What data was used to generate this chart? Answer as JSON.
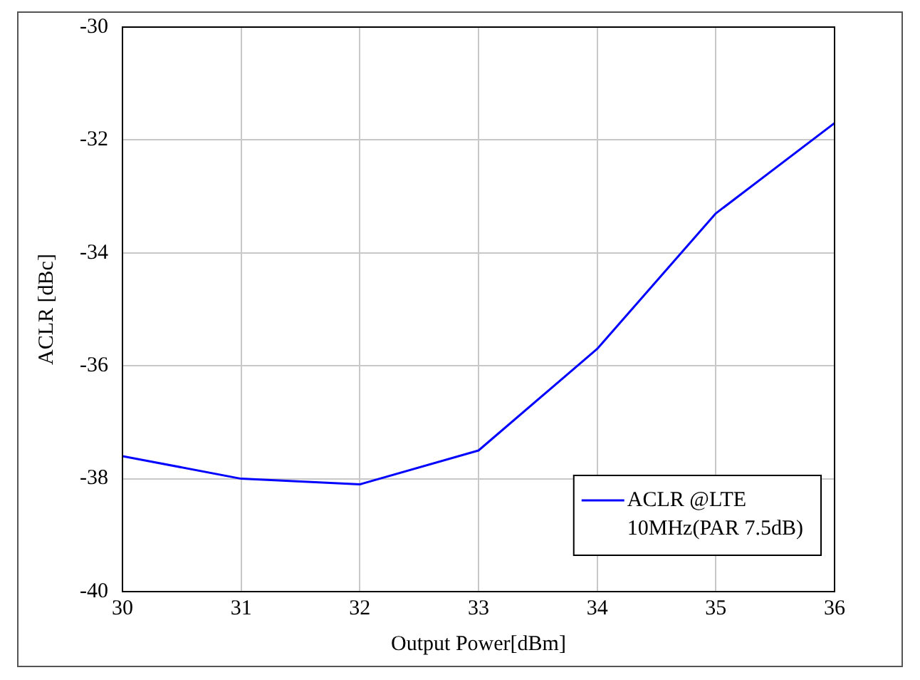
{
  "chart_data": {
    "type": "line",
    "xlabel": "Output Power[dBm]",
    "ylabel": "ACLR [dBc]",
    "x": [
      30,
      31,
      32,
      33,
      34,
      35,
      36
    ],
    "series": [
      {
        "name": "ACLR @LTE 10MHz(PAR 7.5dB)",
        "color": "#0000ff",
        "values": [
          -37.6,
          -38.0,
          -38.1,
          -37.5,
          -35.7,
          -33.3,
          -31.7
        ]
      }
    ],
    "xlim": [
      30,
      36
    ],
    "xticks": [
      30,
      31,
      32,
      33,
      34,
      35,
      36
    ],
    "ylim": [
      -40,
      -30
    ],
    "yticks": [
      -40,
      -38,
      -36,
      -34,
      -32,
      -30
    ],
    "grid": true,
    "legend": "bottom right",
    "marker": "none",
    "line_style": "solid"
  }
}
